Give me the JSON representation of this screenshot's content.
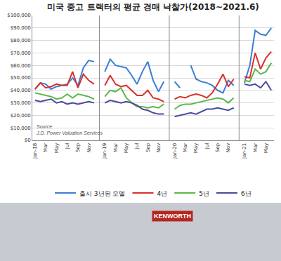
{
  "chart_data": {
    "type": "line",
    "title": "미국 중고 트랙터의 평균 경매 낙찰가(2018~2021.6)",
    "categories": [
      "Jan-18",
      null,
      "Mar",
      null,
      "May",
      null,
      "Jul",
      null,
      "Sep",
      null,
      "Nov",
      null,
      null,
      "Jan-19",
      null,
      "Mar",
      null,
      "May",
      null,
      "Jul",
      null,
      "Sep",
      null,
      "Nov",
      null,
      null,
      "Jan-20",
      null,
      "Mar",
      null,
      "May",
      null,
      "Jul",
      null,
      "Sep",
      null,
      "Nov",
      null,
      null,
      "Jan-21",
      null,
      "Mar",
      null,
      "May",
      null
    ],
    "series": [
      {
        "name": "출시 3년된 모델",
        "color": "#3b7fd4",
        "values": [
          41000,
          46000,
          45000,
          41000,
          43000,
          44000,
          45000,
          50000,
          44000,
          58000,
          64000,
          63000,
          null,
          55000,
          65000,
          60000,
          59000,
          58000,
          52000,
          45000,
          55000,
          63000,
          48000,
          39000,
          47000,
          null,
          47000,
          42000,
          null,
          60000,
          49000,
          47000,
          46000,
          44000,
          40000,
          38000,
          48000,
          44000,
          null,
          46000,
          60000,
          88000,
          85000,
          84000,
          90000
        ]
      },
      {
        "name": "4년",
        "color": "#d9312c",
        "values": [
          41000,
          46000,
          42000,
          43000,
          45000,
          44000,
          44000,
          55000,
          42000,
          53000,
          48000,
          45000,
          null,
          44000,
          52000,
          45000,
          43000,
          44000,
          40000,
          36000,
          36000,
          40000,
          34000,
          33000,
          31000,
          null,
          33000,
          35000,
          34000,
          36000,
          37000,
          36000,
          34000,
          38000,
          45000,
          53000,
          43000,
          49000,
          null,
          51000,
          50000,
          70000,
          57000,
          66000,
          71000
        ]
      },
      {
        "name": "5년",
        "color": "#5cb84a",
        "values": [
          38000,
          37000,
          36000,
          35000,
          33000,
          34000,
          37000,
          34000,
          37000,
          36000,
          35000,
          33000,
          null,
          35000,
          40000,
          39000,
          42000,
          34000,
          30000,
          27000,
          27000,
          26000,
          27000,
          26000,
          29000,
          null,
          25000,
          28000,
          29000,
          29000,
          30000,
          31000,
          32000,
          33000,
          34000,
          33000,
          30000,
          34000,
          null,
          48000,
          47000,
          57000,
          53000,
          55000,
          62000
        ]
      },
      {
        "name": "6년",
        "color": "#4b4a9e",
        "values": [
          32000,
          31000,
          32000,
          33000,
          30000,
          31000,
          29000,
          30000,
          29000,
          30000,
          31000,
          30000,
          null,
          30000,
          32000,
          31000,
          30000,
          31000,
          30000,
          28000,
          25000,
          24000,
          22000,
          21000,
          21000,
          null,
          19000,
          20000,
          21000,
          22000,
          21000,
          23000,
          25000,
          25000,
          26000,
          25000,
          24000,
          26000,
          null,
          45000,
          44000,
          45000,
          42000,
          47000,
          40000
        ]
      }
    ],
    "ylim": [
      0,
      100000
    ],
    "yticks": [
      {
        "value": 0,
        "label": "$0"
      },
      {
        "value": 10000,
        "label": "$10,000"
      },
      {
        "value": 20000,
        "label": "$20,000"
      },
      {
        "value": 30000,
        "label": "$30,000"
      },
      {
        "value": 40000,
        "label": "$40,000"
      },
      {
        "value": 50000,
        "label": "$50,000"
      },
      {
        "value": 60000,
        "label": "$60,000"
      },
      {
        "value": 70000,
        "label": "$70,000"
      },
      {
        "value": 80000,
        "label": "$80,000"
      },
      {
        "value": 90000,
        "label": "$90,000"
      },
      {
        "value": 100000,
        "label": "$100,000"
      }
    ],
    "grid": true,
    "legend": "bottom",
    "source": [
      "Source:",
      "J.D. Power Valuation Services"
    ],
    "photo_sign": "KENWORTH"
  }
}
